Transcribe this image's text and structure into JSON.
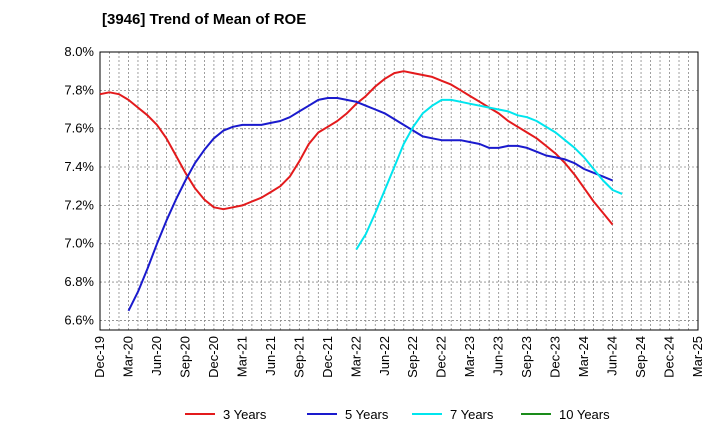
{
  "chart_data": {
    "type": "line",
    "title": "[3946]  Trend of Mean of ROE",
    "xlabel": "",
    "ylabel": "",
    "x_ticks": [
      "Dec-19",
      "Mar-20",
      "Jun-20",
      "Sep-20",
      "Dec-20",
      "Mar-21",
      "Jun-21",
      "Sep-21",
      "Dec-21",
      "Mar-22",
      "Jun-22",
      "Sep-22",
      "Dec-22",
      "Mar-23",
      "Jun-23",
      "Sep-23",
      "Dec-23",
      "Mar-24",
      "Jun-24",
      "Sep-24",
      "Dec-24",
      "Mar-25"
    ],
    "y_ticks": [
      "6.6%",
      "6.8%",
      "7.0%",
      "7.2%",
      "7.4%",
      "7.6%",
      "7.8%",
      "8.0%"
    ],
    "ylim": [
      6.55,
      8.0
    ],
    "grid": true,
    "legend_position": "bottom",
    "series": [
      {
        "name": "3 Years",
        "color": "#e31a1c",
        "start_index": 0,
        "values": [
          7.78,
          7.79,
          7.78,
          7.75,
          7.71,
          7.67,
          7.62,
          7.55,
          7.46,
          7.37,
          7.29,
          7.23,
          7.19,
          7.18,
          7.19,
          7.2,
          7.22,
          7.24,
          7.27,
          7.3,
          7.35,
          7.43,
          7.52,
          7.58,
          7.61,
          7.64,
          7.68,
          7.73,
          7.77,
          7.82,
          7.86,
          7.89,
          7.9,
          7.89,
          7.88,
          7.87,
          7.85,
          7.83,
          7.8,
          7.77,
          7.74,
          7.71,
          7.68,
          7.64,
          7.61,
          7.58,
          7.55,
          7.51,
          7.47,
          7.42,
          7.36,
          7.29,
          7.22,
          7.16,
          7.1
        ]
      },
      {
        "name": "5 Years",
        "color": "#1a1acd",
        "start_index": 3,
        "values": [
          6.65,
          6.75,
          6.87,
          7.0,
          7.12,
          7.23,
          7.33,
          7.42,
          7.49,
          7.55,
          7.59,
          7.61,
          7.62,
          7.62,
          7.62,
          7.63,
          7.64,
          7.66,
          7.69,
          7.72,
          7.75,
          7.76,
          7.76,
          7.75,
          7.74,
          7.72,
          7.7,
          7.68,
          7.65,
          7.62,
          7.59,
          7.56,
          7.55,
          7.54,
          7.54,
          7.54,
          7.53,
          7.52,
          7.5,
          7.5,
          7.51,
          7.51,
          7.5,
          7.48,
          7.46,
          7.45,
          7.44,
          7.42,
          7.39,
          7.37,
          7.35,
          7.33
        ]
      },
      {
        "name": "7 Years",
        "color": "#00e5ee",
        "start_index": 27,
        "values": [
          6.97,
          7.05,
          7.16,
          7.28,
          7.4,
          7.52,
          7.61,
          7.68,
          7.72,
          7.75,
          7.75,
          7.74,
          7.73,
          7.72,
          7.71,
          7.7,
          7.69,
          7.67,
          7.66,
          7.64,
          7.61,
          7.58,
          7.54,
          7.5,
          7.45,
          7.39,
          7.33,
          7.28,
          7.26
        ]
      },
      {
        "name": "10 Years",
        "color": "#1a8c1a",
        "start_index": 0,
        "values": []
      }
    ]
  }
}
